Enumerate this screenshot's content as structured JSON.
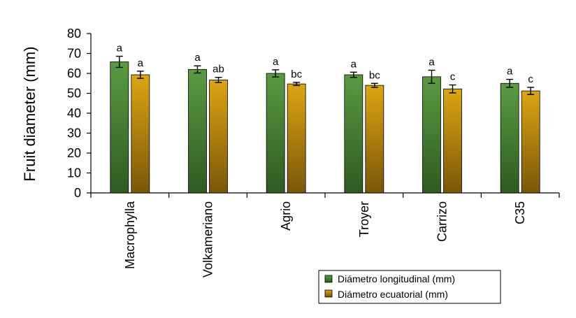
{
  "chart_data": {
    "type": "bar",
    "title": "",
    "xlabel": "",
    "ylabel": "Fruit diameter (mm)",
    "ylim": [
      0,
      80
    ],
    "yticks": [
      0,
      10,
      20,
      30,
      40,
      50,
      60,
      70,
      80
    ],
    "grid": false,
    "legend_position": "bottom-right",
    "categories": [
      "Macrophylla",
      "Volkameriano",
      "Agrio",
      "Troyer",
      "Carrizo",
      "C35"
    ],
    "series": [
      {
        "name": "Diámetro longitudinal (mm)",
        "color": "#4f8a3a",
        "values": [
          65.8,
          62.0,
          60.0,
          59.3,
          58.3,
          55.0
        ],
        "errors": [
          2.8,
          1.8,
          1.8,
          1.3,
          3.3,
          2.0
        ],
        "letters": [
          "a",
          "a",
          "a",
          "a",
          "a",
          "a"
        ]
      },
      {
        "name": "Diámetro ecuatorial (mm)",
        "color": "#c9960e",
        "values": [
          59.3,
          56.7,
          54.7,
          54.0,
          52.2,
          51.2
        ],
        "errors": [
          1.8,
          1.3,
          0.8,
          1.0,
          2.0,
          1.8
        ],
        "letters": [
          "a",
          "ab",
          "bc",
          "bc",
          "c",
          "c"
        ]
      }
    ]
  }
}
